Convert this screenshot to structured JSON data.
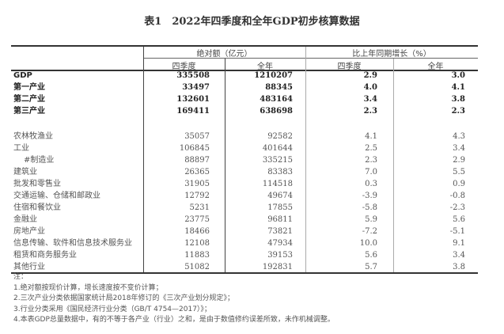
{
  "title": "表1　2022年四季度和全年GDP初步核算数据",
  "header": {
    "group1": "绝对额（亿元）",
    "group2": "比上年同期增长（%）",
    "sub": [
      "四季度",
      "全年",
      "四季度",
      "全年"
    ]
  },
  "summary_rows": [
    {
      "label": "GDP",
      "q4": "335508",
      "year": "1210207",
      "q4_growth": "2.9",
      "year_growth": "3.0"
    },
    {
      "label": "第一产业",
      "q4": "33497",
      "year": "88345",
      "q4_growth": "4.0",
      "year_growth": "4.1"
    },
    {
      "label": "第二产业",
      "q4": "132601",
      "year": "483164",
      "q4_growth": "3.4",
      "year_growth": "3.8"
    },
    {
      "label": "第三产业",
      "q4": "169411",
      "year": "638698",
      "q4_growth": "2.3",
      "year_growth": "2.3"
    }
  ],
  "industry_rows": [
    {
      "label": "农林牧渔业",
      "q4": "35057",
      "year": "92582",
      "q4_growth": "4.1",
      "year_growth": "4.3"
    },
    {
      "label": "工业",
      "q4": "106845",
      "year": "401644",
      "q4_growth": "2.5",
      "year_growth": "3.4"
    },
    {
      "label": "#制造业",
      "q4": "88897",
      "year": "335215",
      "q4_growth": "2.3",
      "year_growth": "2.9",
      "indent": true
    },
    {
      "label": "建筑业",
      "q4": "26365",
      "year": "83383",
      "q4_growth": "7.0",
      "year_growth": "5.5"
    },
    {
      "label": "批发和零售业",
      "q4": "31905",
      "year": "114518",
      "q4_growth": "0.3",
      "year_growth": "0.9"
    },
    {
      "label": "交通运输、仓储和邮政业",
      "q4": "12792",
      "year": "49674",
      "q4_growth": "-3.9",
      "year_growth": "-0.8"
    },
    {
      "label": "住宿和餐饮业",
      "q4": "5231",
      "year": "17855",
      "q4_growth": "-5.8",
      "year_growth": "-2.3"
    },
    {
      "label": "金融业",
      "q4": "23775",
      "year": "96811",
      "q4_growth": "5.9",
      "year_growth": "5.6"
    },
    {
      "label": "房地产业",
      "q4": "18466",
      "year": "73821",
      "q4_growth": "-7.2",
      "year_growth": "-5.1"
    },
    {
      "label": "信息传输、软件和信息技术服务业",
      "q4": "12108",
      "year": "47934",
      "q4_growth": "10.0",
      "year_growth": "9.1"
    },
    {
      "label": "租赁和商务服务业",
      "q4": "11883",
      "year": "39153",
      "q4_growth": "5.6",
      "year_growth": "3.4"
    },
    {
      "label": "其他行业",
      "q4": "51082",
      "year": "192831",
      "q4_growth": "5.7",
      "year_growth": "3.8"
    }
  ],
  "notes": [
    "注：",
    "1.绝对额按现价计算，增长速度按不变价计算；",
    "2.三次产业分类依据国家统计局2018年修订的《三次产业划分规定》；",
    "3.行业分类采用《国民经济行业分类（GB/T 4754—2017）》；",
    "4.本表GDP总量数据中，有的不等于各产业（行业）之和，是由于数值修约误差所致，未作机械调整。"
  ]
}
